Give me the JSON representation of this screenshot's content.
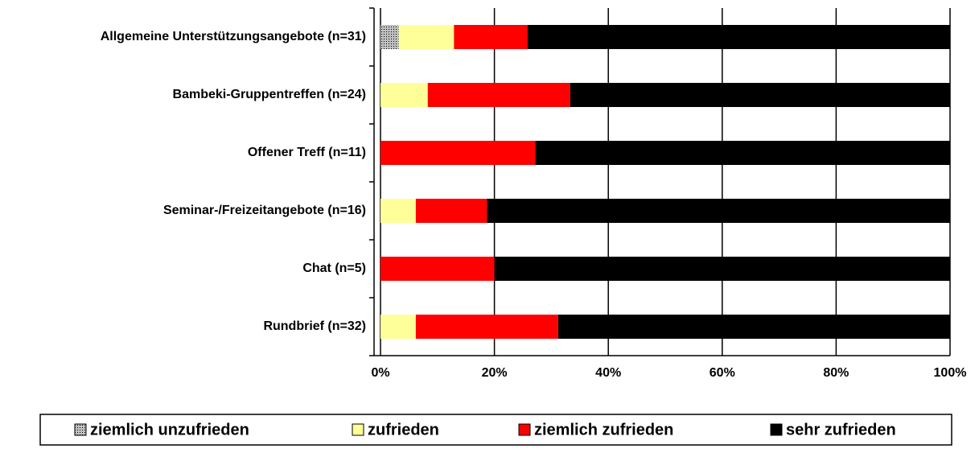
{
  "chart_data": {
    "type": "stacked_barh",
    "categories": [
      "Allgemeine Unterstützungsangebote (n=31)",
      "Bambeki-Gruppentreffen (n=24)",
      "Offener Treff (n=11)",
      "Seminar-/Freizeitangebote (n=16)",
      "Chat (n=5)",
      "Rundbrief (n=32)"
    ],
    "series": [
      {
        "name": "ziemlich unzufrieden",
        "color": "#c0c0c0",
        "pattern": "dotted",
        "values": [
          3.2,
          0,
          0,
          0,
          0,
          0
        ]
      },
      {
        "name": "zufrieden",
        "color": "#ffff99",
        "values": [
          9.7,
          8.3,
          0,
          6.2,
          0,
          6.2
        ]
      },
      {
        "name": "ziemlich zufrieden",
        "color": "#ff0000",
        "values": [
          12.9,
          25.0,
          27.2,
          12.5,
          20.0,
          25.0
        ]
      },
      {
        "name": "sehr zufrieden",
        "color": "#000000",
        "values": [
          74.2,
          66.7,
          72.8,
          81.3,
          80.0,
          68.8
        ]
      }
    ],
    "xlim": [
      0,
      100
    ],
    "xticks": [
      {
        "value": 0,
        "label": "0%"
      },
      {
        "value": 20,
        "label": "20%"
      },
      {
        "value": 40,
        "label": "40%"
      },
      {
        "value": 60,
        "label": "60%"
      },
      {
        "value": 80,
        "label": "80%"
      },
      {
        "value": 100,
        "label": "100%"
      }
    ],
    "grid": true,
    "legend": "bottom"
  }
}
